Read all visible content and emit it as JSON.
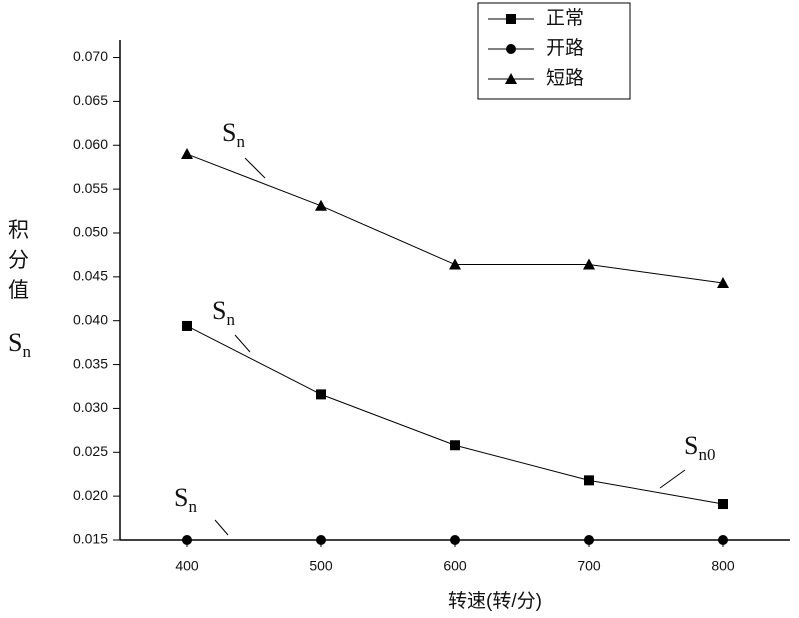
{
  "chart_data": {
    "type": "line",
    "x_label": "转速(转/分)",
    "y_label": "积分值",
    "y_label_symbol": {
      "text": "S",
      "sub": "n"
    },
    "x": [
      400,
      500,
      600,
      700,
      800
    ],
    "series": [
      {
        "name": "正常",
        "color": "#000000",
        "marker": "square",
        "values": [
          0.0394,
          0.0316,
          0.0258,
          0.0218,
          0.0191
        ]
      },
      {
        "name": "开路",
        "color": "#000000",
        "marker": "circle",
        "values": [
          0.015,
          0.015,
          0.015,
          0.015,
          0.015
        ]
      },
      {
        "name": "短路",
        "color": "#000000",
        "marker": "triangle",
        "values": [
          0.059,
          0.0531,
          0.0464,
          0.0464,
          0.0443
        ]
      }
    ],
    "xlim": [
      350,
      850
    ],
    "xticks": [
      400,
      500,
      600,
      700,
      800
    ],
    "ylim": [
      0.015,
      0.072
    ],
    "yticks": [
      0.015,
      {
        "value": 0.02,
        "label": "0.020"
      },
      0.025,
      {
        "value": 0.03,
        "label": "0.030"
      },
      0.035,
      {
        "value": 0.04,
        "label": "0.040"
      },
      0.045,
      {
        "value": 0.05,
        "label": "0.050"
      },
      0.055,
      {
        "value": 0.06,
        "label": "0.060"
      },
      0.065,
      {
        "value": 0.07,
        "label": "0.070"
      }
    ],
    "annotations": [
      {
        "text": "S",
        "sub": "n"
      },
      {
        "text": "S",
        "sub": "n"
      },
      {
        "text": "S",
        "sub": "n0"
      },
      {
        "text": "S",
        "sub": "n"
      }
    ],
    "legend": "top-right"
  }
}
